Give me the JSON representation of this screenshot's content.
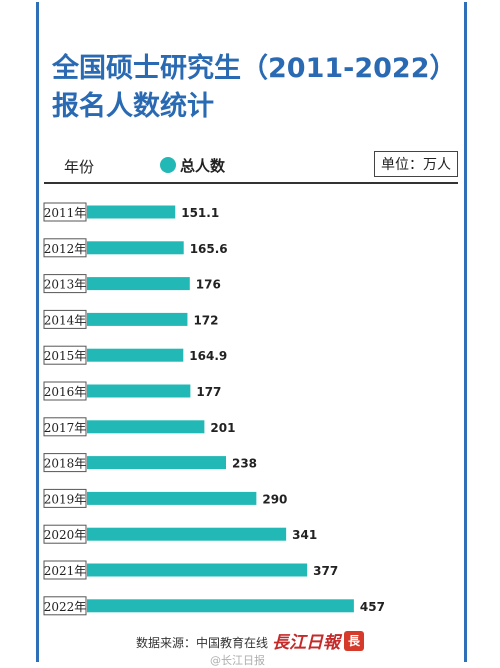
{
  "header": {
    "title": "全国硕士研究生（2011-2022）报名人数统计"
  },
  "legend": {
    "year_label": "年份",
    "series_label": "总人数",
    "unit_label": "单位：万人"
  },
  "footer": {
    "source": "数据来源：中国教育在线",
    "brand_text": "長江日報",
    "brand_seal": "長",
    "watermark": "@长江日报"
  },
  "colors": {
    "bar": "#22b8b5",
    "title": "#2a6ab3",
    "frame": "#2e6fb8"
  },
  "chart_data": {
    "type": "bar",
    "orientation": "horizontal",
    "categories": [
      "2011年",
      "2012年",
      "2013年",
      "2014年",
      "2015年",
      "2016年",
      "2017年",
      "2018年",
      "2019年",
      "2020年",
      "2021年",
      "2022年"
    ],
    "series": [
      {
        "name": "总人数",
        "values": [
          151.1,
          165.6,
          176,
          172,
          164.9,
          177,
          201,
          238,
          290,
          341,
          377,
          457
        ]
      }
    ],
    "value_labels": [
      "151.1",
      "165.6",
      "176",
      "172",
      "164.9",
      "177",
      "201",
      "238",
      "290",
      "341",
      "377",
      "457"
    ],
    "title": "全国硕士研究生（2011-2022）报名人数统计",
    "unit": "单位：万人",
    "grid": false,
    "legend_position": "top-left"
  }
}
